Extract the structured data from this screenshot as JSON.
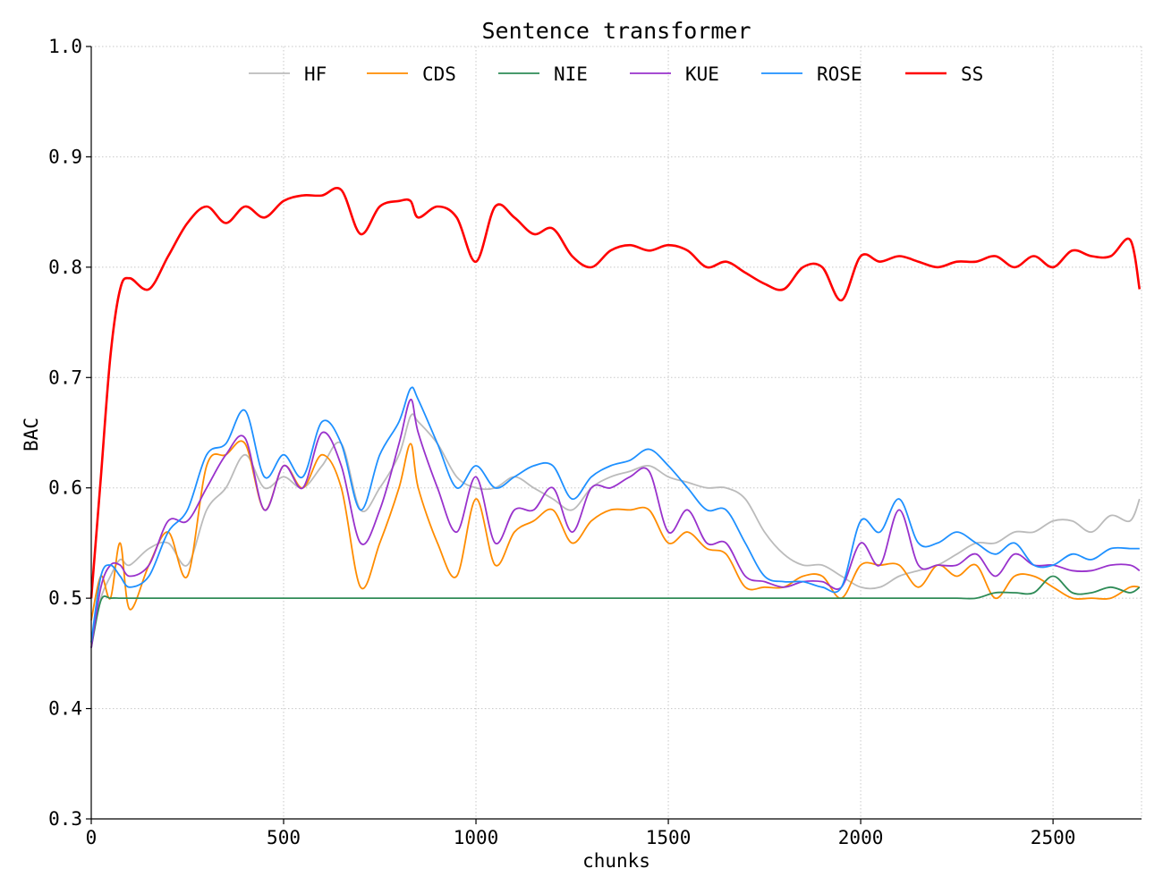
{
  "chart_data": {
    "type": "line",
    "title": "Sentence transformer",
    "xlabel": "chunks",
    "ylabel": "BAC",
    "xlim": [
      0,
      2730
    ],
    "ylim": [
      0.3,
      1.0
    ],
    "x_ticks": [
      "0",
      "500",
      "1000",
      "1500",
      "2000",
      "2500"
    ],
    "y_ticks": [
      "0.3",
      "0.4",
      "0.5",
      "0.6",
      "0.7",
      "0.8",
      "0.9",
      "1.0"
    ],
    "grid": true,
    "legend_position": "top",
    "x": [
      0,
      25,
      50,
      75,
      100,
      150,
      200,
      250,
      300,
      350,
      400,
      450,
      500,
      550,
      600,
      650,
      700,
      750,
      800,
      830,
      850,
      900,
      950,
      1000,
      1050,
      1100,
      1150,
      1200,
      1250,
      1300,
      1350,
      1400,
      1450,
      1500,
      1550,
      1600,
      1650,
      1700,
      1750,
      1800,
      1850,
      1900,
      1950,
      2000,
      2050,
      2100,
      2150,
      2200,
      2250,
      2300,
      2350,
      2400,
      2450,
      2500,
      2550,
      2600,
      2650,
      2700,
      2725
    ],
    "series": [
      {
        "name": "HF",
        "color": "#bbbbbb",
        "values": [
          0.46,
          0.5,
          0.52,
          0.535,
          0.53,
          0.545,
          0.55,
          0.53,
          0.58,
          0.6,
          0.63,
          0.6,
          0.61,
          0.6,
          0.62,
          0.64,
          0.58,
          0.6,
          0.63,
          0.665,
          0.66,
          0.64,
          0.61,
          0.6,
          0.6,
          0.61,
          0.6,
          0.59,
          0.58,
          0.6,
          0.61,
          0.615,
          0.62,
          0.61,
          0.605,
          0.6,
          0.6,
          0.59,
          0.56,
          0.54,
          0.53,
          0.53,
          0.52,
          0.51,
          0.51,
          0.52,
          0.525,
          0.53,
          0.54,
          0.55,
          0.55,
          0.56,
          0.56,
          0.57,
          0.57,
          0.56,
          0.575,
          0.57,
          0.59
        ]
      },
      {
        "name": "CDS",
        "color": "#ff8c00",
        "values": [
          0.48,
          0.52,
          0.5,
          0.55,
          0.49,
          0.53,
          0.56,
          0.52,
          0.62,
          0.63,
          0.64,
          0.58,
          0.62,
          0.6,
          0.63,
          0.6,
          0.51,
          0.55,
          0.6,
          0.64,
          0.6,
          0.55,
          0.52,
          0.59,
          0.53,
          0.56,
          0.57,
          0.58,
          0.55,
          0.57,
          0.58,
          0.58,
          0.58,
          0.55,
          0.56,
          0.545,
          0.54,
          0.51,
          0.51,
          0.51,
          0.52,
          0.52,
          0.5,
          0.53,
          0.53,
          0.53,
          0.51,
          0.53,
          0.52,
          0.53,
          0.5,
          0.52,
          0.52,
          0.51,
          0.5,
          0.5,
          0.5,
          0.51,
          0.51
        ]
      },
      {
        "name": "NIE",
        "color": "#2e8b57",
        "values": [
          0.455,
          0.498,
          0.5,
          0.5,
          0.5,
          0.5,
          0.5,
          0.5,
          0.5,
          0.5,
          0.5,
          0.5,
          0.5,
          0.5,
          0.5,
          0.5,
          0.5,
          0.5,
          0.5,
          0.5,
          0.5,
          0.5,
          0.5,
          0.5,
          0.5,
          0.5,
          0.5,
          0.5,
          0.5,
          0.5,
          0.5,
          0.5,
          0.5,
          0.5,
          0.5,
          0.5,
          0.5,
          0.5,
          0.5,
          0.5,
          0.5,
          0.5,
          0.5,
          0.5,
          0.5,
          0.5,
          0.5,
          0.5,
          0.5,
          0.5,
          0.505,
          0.505,
          0.505,
          0.52,
          0.505,
          0.505,
          0.51,
          0.505,
          0.51
        ]
      },
      {
        "name": "KUE",
        "color": "#9932cc",
        "values": [
          0.455,
          0.51,
          0.53,
          0.53,
          0.52,
          0.53,
          0.57,
          0.57,
          0.6,
          0.63,
          0.645,
          0.58,
          0.62,
          0.6,
          0.65,
          0.62,
          0.55,
          0.58,
          0.64,
          0.68,
          0.65,
          0.6,
          0.56,
          0.61,
          0.55,
          0.58,
          0.58,
          0.6,
          0.56,
          0.6,
          0.6,
          0.61,
          0.615,
          0.56,
          0.58,
          0.55,
          0.55,
          0.52,
          0.515,
          0.51,
          0.515,
          0.515,
          0.51,
          0.55,
          0.53,
          0.58,
          0.53,
          0.53,
          0.53,
          0.54,
          0.52,
          0.54,
          0.53,
          0.53,
          0.525,
          0.525,
          0.53,
          0.53,
          0.525
        ]
      },
      {
        "name": "ROSE",
        "color": "#1e90ff",
        "values": [
          0.46,
          0.52,
          0.53,
          0.52,
          0.51,
          0.52,
          0.56,
          0.58,
          0.63,
          0.64,
          0.67,
          0.61,
          0.63,
          0.61,
          0.66,
          0.64,
          0.58,
          0.63,
          0.66,
          0.69,
          0.68,
          0.64,
          0.6,
          0.62,
          0.6,
          0.61,
          0.62,
          0.62,
          0.59,
          0.61,
          0.62,
          0.625,
          0.635,
          0.62,
          0.6,
          0.58,
          0.58,
          0.55,
          0.52,
          0.515,
          0.515,
          0.51,
          0.51,
          0.57,
          0.56,
          0.59,
          0.55,
          0.55,
          0.56,
          0.55,
          0.54,
          0.55,
          0.53,
          0.53,
          0.54,
          0.535,
          0.545,
          0.545,
          0.545
        ]
      },
      {
        "name": "SS",
        "color": "#ff0000",
        "values": [
          0.5,
          0.61,
          0.72,
          0.78,
          0.79,
          0.78,
          0.81,
          0.84,
          0.855,
          0.84,
          0.855,
          0.845,
          0.86,
          0.865,
          0.865,
          0.87,
          0.83,
          0.855,
          0.86,
          0.86,
          0.845,
          0.855,
          0.845,
          0.805,
          0.855,
          0.845,
          0.83,
          0.835,
          0.81,
          0.8,
          0.815,
          0.82,
          0.815,
          0.82,
          0.815,
          0.8,
          0.805,
          0.795,
          0.785,
          0.78,
          0.8,
          0.8,
          0.77,
          0.81,
          0.805,
          0.81,
          0.805,
          0.8,
          0.805,
          0.805,
          0.81,
          0.8,
          0.81,
          0.8,
          0.815,
          0.81,
          0.81,
          0.825,
          0.78
        ]
      }
    ]
  }
}
